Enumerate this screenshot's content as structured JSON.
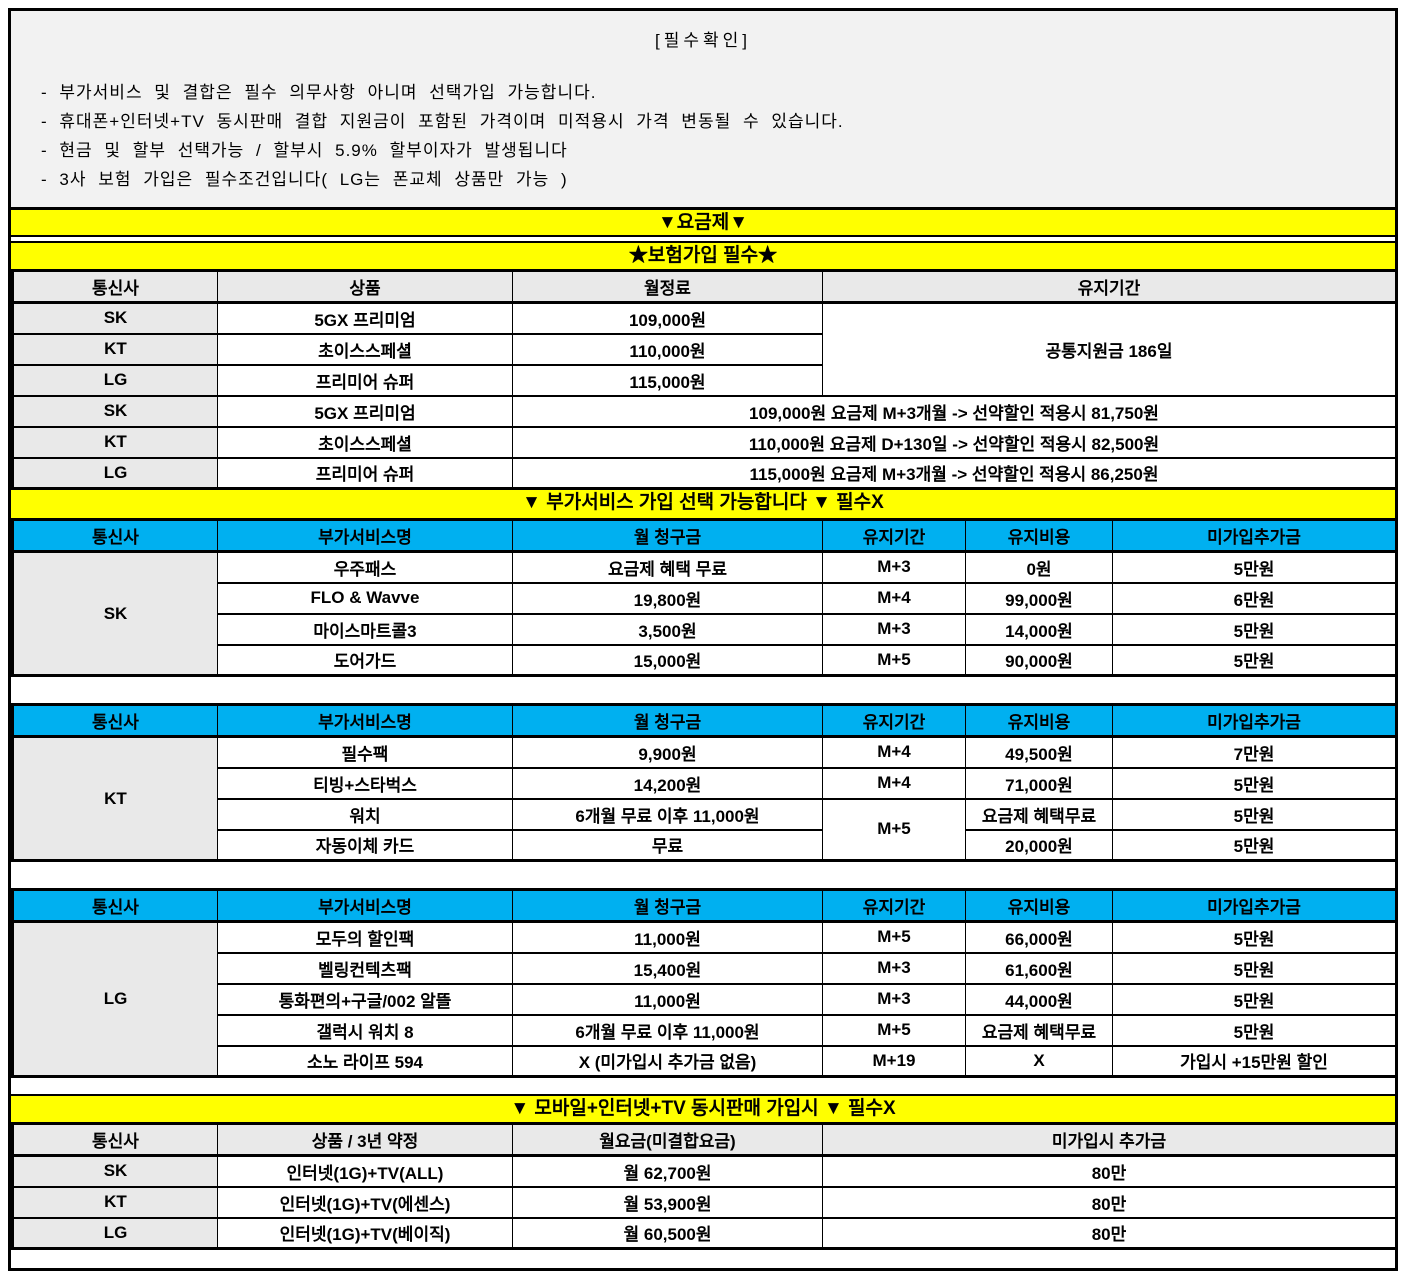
{
  "page": {
    "title": "[필수확인]",
    "notes": [
      "- 부가서비스 및 결합은 필수 의무사항 아니며 선택가입 가능합니다.",
      "- 휴대폰+인터넷+TV 동시판매 결합 지원금이 포함된 가격이며 미적용시 가격 변동될 수 있습니다.",
      "- 현금 및 할부 선택가능 / 할부시 5.9% 할부이자가 발생됩니다",
      "- 3사 보험 가입은 필수조건입니다( LG는 폰교체 상품만 가능 )"
    ]
  },
  "banners": {
    "plan": "▼요금제▼",
    "insurance": "★보험가입 필수★",
    "addon": "▼ 부가서비스 가입 선택 가능합니다 ▼ 필수X",
    "bundle": "▼ 모바일+인터넷+TV 동시판매 가입시 ▼ 필수X"
  },
  "plan_table": {
    "headers": [
      "통신사",
      "상품",
      "월정료",
      "유지기간"
    ],
    "retention_note": "공통지원금 186일",
    "rows": [
      {
        "carrier": "SK",
        "product": "5GX 프리미엄",
        "fee": "109,000원"
      },
      {
        "carrier": "KT",
        "product": "초이스스페셜",
        "fee": "110,000원"
      },
      {
        "carrier": "LG",
        "product": "프리미어 슈퍼",
        "fee": "115,000원"
      }
    ],
    "discount_rows": [
      {
        "carrier": "SK",
        "product": "5GX 프리미엄",
        "detail": "109,000원 요금제 M+3개월 -> 선약할인 적용시 81,750원"
      },
      {
        "carrier": "KT",
        "product": "초이스스페셜",
        "detail": "110,000원 요금제 D+130일 -> 선약할인 적용시 82,500원"
      },
      {
        "carrier": "LG",
        "product": "프리미어 슈퍼",
        "detail": "115,000원 요금제 M+3개월 -> 선약할인 적용시 86,250원"
      }
    ]
  },
  "addon_headers": [
    "통신사",
    "부가서비스명",
    "월 청구금",
    "유지기간",
    "유지비용",
    "미가입추가금"
  ],
  "sk_table": {
    "carrier": "SK",
    "rows": [
      {
        "name": "우주패스",
        "fee": "요금제 혜택 무료",
        "period": "M+3",
        "cost": "0원",
        "penalty": "5만원"
      },
      {
        "name": "FLO & Wavve",
        "fee": "19,800원",
        "period": "M+4",
        "cost": "99,000원",
        "penalty": "6만원"
      },
      {
        "name": "마이스마트콜3",
        "fee": "3,500원",
        "period": "M+3",
        "cost": "14,000원",
        "penalty": "5만원"
      },
      {
        "name": "도어가드",
        "fee": "15,000원",
        "period": "M+5",
        "cost": "90,000원",
        "penalty": "5만원"
      }
    ]
  },
  "kt_table": {
    "carrier": "KT",
    "rows": [
      {
        "name": "필수팩",
        "fee": "9,900원",
        "period": "M+4",
        "cost": "49,500원",
        "penalty": "7만원"
      },
      {
        "name": "티빙+스타벅스",
        "fee": "14,200원",
        "period": "M+4",
        "cost": "71,000원",
        "penalty": "5만원"
      },
      {
        "name": "워치",
        "fee": "6개월 무료 이후 11,000원",
        "period": "M+5",
        "cost": "요금제 혜택무료",
        "penalty": "5만원"
      },
      {
        "name": "자동이체 카드",
        "fee": "무료",
        "cost": "20,000원",
        "penalty": "5만원"
      }
    ]
  },
  "lg_table": {
    "carrier": "LG",
    "rows": [
      {
        "name": "모두의 할인팩",
        "fee": "11,000원",
        "period": "M+5",
        "cost": "66,000원",
        "penalty": "5만원"
      },
      {
        "name": "벨링컨텍츠팩",
        "fee": "15,400원",
        "period": "M+3",
        "cost": "61,600원",
        "penalty": "5만원"
      },
      {
        "name": "통화편의+구글/002 알뜰",
        "fee": "11,000원",
        "period": "M+3",
        "cost": "44,000원",
        "penalty": "5만원"
      },
      {
        "name": "갤럭시 워치 8",
        "fee": "6개월 무료 이후 11,000원",
        "period": "M+5",
        "cost": "요금제 혜택무료",
        "penalty": "5만원"
      },
      {
        "name": "소노 라이프 594",
        "fee": "X (미가입시 추가금 없음)",
        "period": "M+19",
        "cost": "X",
        "penalty": "가입시 +15만원 할인"
      }
    ]
  },
  "bundle_table": {
    "headers": [
      "통신사",
      "상품 / 3년 약정",
      "월요금(미결합요금)",
      "미가입시 추가금"
    ],
    "rows": [
      {
        "carrier": "SK",
        "product": "인터넷(1G)+TV(ALL)",
        "fee": "월 62,700원",
        "penalty": "80만"
      },
      {
        "carrier": "KT",
        "product": "인터넷(1G)+TV(에센스)",
        "fee": "월 53,900원",
        "penalty": "80만"
      },
      {
        "carrier": "LG",
        "product": "인터넷(1G)+TV(베이직)",
        "fee": "월 60,500원",
        "penalty": "80만"
      }
    ]
  },
  "colors": {
    "banner_yellow": "#FFFF00",
    "header_blue": "#00B0F0",
    "cell_gray": "#E9E9E9",
    "notice_bg": "#F2F2F2",
    "border_black": "#000000"
  }
}
